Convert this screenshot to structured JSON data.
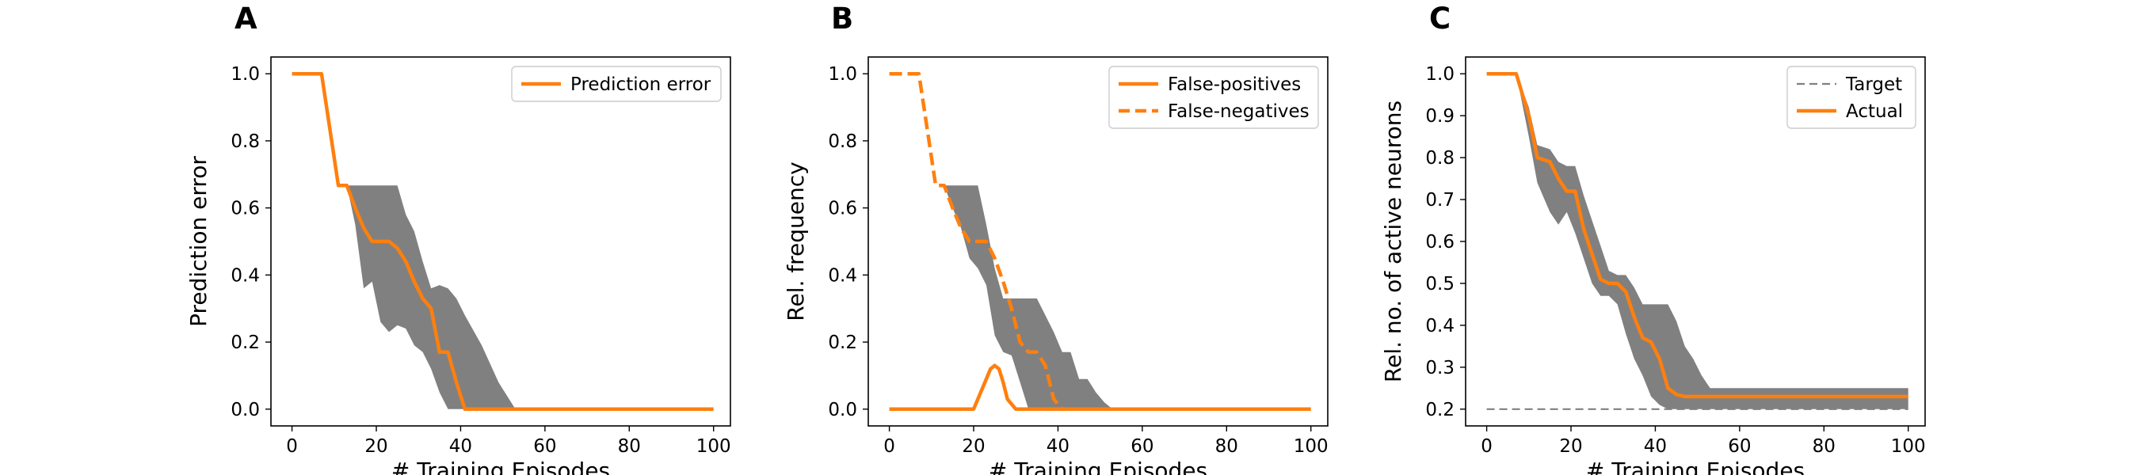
{
  "chart_data": [
    {
      "type": "line",
      "panel_label": "A",
      "xlabel": "# Training Episodes",
      "ylabel": "Prediction error",
      "xlim": [
        -5,
        104
      ],
      "ylim": [
        -0.05,
        1.05
      ],
      "xticks": [
        0,
        20,
        40,
        60,
        80,
        100
      ],
      "yticks": [
        0.0,
        0.2,
        0.4,
        0.6,
        0.8,
        1.0
      ],
      "ytick_format": "0.0",
      "legend_position": "top-right",
      "colors": {
        "series": "#ff7f0e",
        "band": "#808080"
      },
      "series": [
        {
          "name": "Prediction error",
          "style": "solid",
          "x": [
            0,
            7,
            11,
            13,
            15,
            17,
            19,
            21,
            23,
            25,
            27,
            29,
            31,
            33,
            35,
            37,
            39,
            41,
            100
          ],
          "y": [
            1.0,
            1.0,
            0.667,
            0.667,
            0.6,
            0.54,
            0.5,
            0.5,
            0.5,
            0.48,
            0.44,
            0.38,
            0.33,
            0.3,
            0.17,
            0.17,
            0.08,
            0.0,
            0.0
          ]
        }
      ],
      "band": {
        "x": [
          0,
          7,
          11,
          13,
          15,
          17,
          19,
          21,
          23,
          25,
          27,
          29,
          31,
          33,
          35,
          37,
          39,
          41,
          45,
          49,
          53,
          100
        ],
        "lower": [
          1.0,
          1.0,
          0.667,
          0.667,
          0.55,
          0.36,
          0.38,
          0.26,
          0.23,
          0.25,
          0.24,
          0.19,
          0.17,
          0.12,
          0.05,
          0.0,
          0.0,
          0.0,
          0.0,
          0.0,
          0.0,
          0.0
        ],
        "upper": [
          1.0,
          1.0,
          0.667,
          0.667,
          0.667,
          0.667,
          0.667,
          0.667,
          0.667,
          0.667,
          0.58,
          0.53,
          0.44,
          0.36,
          0.37,
          0.36,
          0.33,
          0.28,
          0.19,
          0.08,
          0.0,
          0.0
        ]
      }
    },
    {
      "type": "line",
      "panel_label": "B",
      "xlabel": "# Training Episodes",
      "ylabel": "Rel. frequency",
      "xlim": [
        -5,
        104
      ],
      "ylim": [
        -0.05,
        1.05
      ],
      "xticks": [
        0,
        20,
        40,
        60,
        80,
        100
      ],
      "yticks": [
        0.0,
        0.2,
        0.4,
        0.6,
        0.8,
        1.0
      ],
      "ytick_format": "0.0",
      "legend_position": "top-right",
      "colors": {
        "series": "#ff7f0e",
        "band": "#808080"
      },
      "series": [
        {
          "name": "False-positives",
          "style": "solid",
          "x": [
            0,
            20,
            22,
            24,
            25,
            26,
            27,
            28,
            30,
            100
          ],
          "y": [
            0.0,
            0.0,
            0.06,
            0.12,
            0.13,
            0.12,
            0.08,
            0.03,
            0.0,
            0.0
          ]
        },
        {
          "name": "False-negatives",
          "style": "dashed",
          "x": [
            0,
            7,
            11,
            13,
            15,
            17,
            19,
            21,
            23,
            25,
            27,
            29,
            31,
            33,
            35,
            37,
            39,
            41,
            100
          ],
          "y": [
            1.0,
            1.0,
            0.667,
            0.667,
            0.6,
            0.54,
            0.5,
            0.5,
            0.5,
            0.45,
            0.38,
            0.3,
            0.2,
            0.17,
            0.17,
            0.13,
            0.03,
            0.0,
            0.0
          ]
        }
      ],
      "band": {
        "x": [
          0,
          7,
          11,
          13,
          15,
          17,
          19,
          21,
          23,
          25,
          27,
          29,
          31,
          33,
          35,
          37,
          39,
          41,
          43,
          45,
          47,
          49,
          51,
          53,
          100
        ],
        "lower": [
          1.0,
          1.0,
          0.667,
          0.667,
          0.6,
          0.54,
          0.45,
          0.42,
          0.37,
          0.22,
          0.17,
          0.16,
          0.08,
          0.0,
          0.0,
          0.0,
          0.0,
          0.0,
          0.0,
          0.0,
          0.0,
          0.0,
          0.0,
          0.0,
          0.0
        ],
        "upper": [
          1.0,
          1.0,
          0.667,
          0.667,
          0.667,
          0.667,
          0.667,
          0.667,
          0.55,
          0.42,
          0.33,
          0.33,
          0.33,
          0.33,
          0.33,
          0.28,
          0.23,
          0.17,
          0.17,
          0.09,
          0.09,
          0.05,
          0.02,
          0.0,
          0.0
        ]
      }
    },
    {
      "type": "line",
      "panel_label": "C",
      "xlabel": "# Training Episodes",
      "ylabel": "Rel. no. of active neurons",
      "xlim": [
        -5,
        104
      ],
      "ylim": [
        0.16,
        1.04
      ],
      "xticks": [
        0,
        20,
        40,
        60,
        80,
        100
      ],
      "yticks": [
        0.2,
        0.3,
        0.4,
        0.5,
        0.6,
        0.7,
        0.8,
        0.9,
        1.0
      ],
      "ytick_format": "0.0",
      "legend_position": "top-right",
      "colors": {
        "target": "#808080",
        "series": "#ff7f0e",
        "band": "#808080"
      },
      "series": [
        {
          "name": "Target",
          "style": "dashed",
          "color": "#808080",
          "x": [
            0,
            100
          ],
          "y": [
            0.2,
            0.2
          ]
        },
        {
          "name": "Actual",
          "style": "solid",
          "x": [
            0,
            7,
            10,
            12,
            15,
            17,
            19,
            21,
            23,
            25,
            27,
            29,
            31,
            33,
            35,
            37,
            39,
            41,
            43,
            45,
            47,
            50,
            60,
            80,
            100
          ],
          "y": [
            1.0,
            1.0,
            0.9,
            0.8,
            0.79,
            0.75,
            0.72,
            0.72,
            0.63,
            0.57,
            0.51,
            0.5,
            0.5,
            0.48,
            0.42,
            0.37,
            0.36,
            0.32,
            0.25,
            0.235,
            0.23,
            0.23,
            0.23,
            0.23,
            0.23
          ]
        }
      ],
      "band": {
        "x": [
          0,
          7,
          10,
          12,
          15,
          17,
          19,
          21,
          23,
          25,
          27,
          29,
          31,
          33,
          35,
          37,
          39,
          41,
          43,
          45,
          47,
          49,
          51,
          53,
          55,
          57,
          60,
          100
        ],
        "lower": [
          1.0,
          1.0,
          0.85,
          0.74,
          0.67,
          0.64,
          0.67,
          0.62,
          0.56,
          0.5,
          0.47,
          0.47,
          0.45,
          0.38,
          0.32,
          0.28,
          0.23,
          0.21,
          0.2,
          0.2,
          0.2,
          0.2,
          0.2,
          0.2,
          0.2,
          0.2,
          0.2,
          0.2
        ],
        "upper": [
          1.0,
          1.0,
          0.92,
          0.83,
          0.82,
          0.79,
          0.78,
          0.78,
          0.71,
          0.65,
          0.59,
          0.53,
          0.52,
          0.52,
          0.49,
          0.45,
          0.45,
          0.45,
          0.45,
          0.41,
          0.35,
          0.32,
          0.28,
          0.25,
          0.25,
          0.25,
          0.25,
          0.25
        ]
      }
    }
  ]
}
